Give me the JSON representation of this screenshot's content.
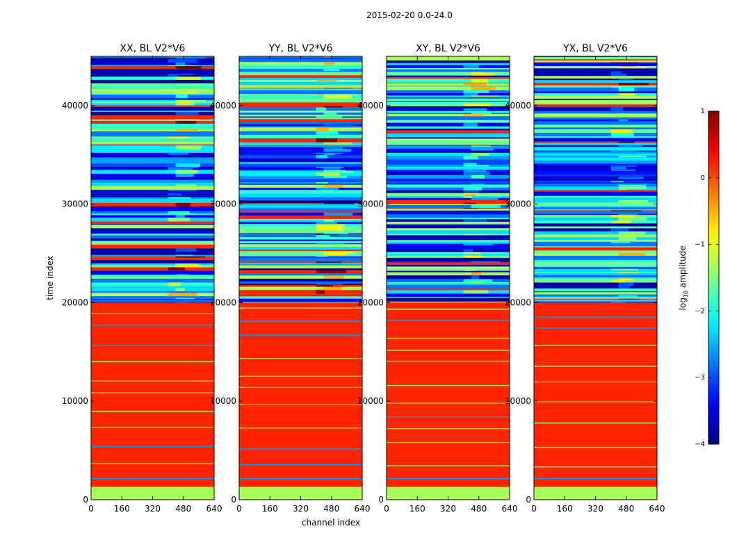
{
  "figure_title": "2015-02-20 0.0-24.0",
  "chart_data": {
    "type": "heatmap",
    "title": "2015-02-20 0.0-24.0",
    "xlabel": "channel index",
    "ylabel": "time index",
    "xlim": [
      0,
      640
    ],
    "ylim": [
      0,
      45000
    ],
    "x_ticks": [
      "0",
      "160",
      "320",
      "480",
      "640"
    ],
    "x_tick_values": [
      0,
      160,
      320,
      480,
      640
    ],
    "y_ticks": [
      "0",
      "10000",
      "20000",
      "30000",
      "40000"
    ],
    "y_tick_values": [
      0,
      10000,
      20000,
      30000,
      40000
    ],
    "panels": [
      {
        "title": "XX, BL V2*V6",
        "pol": "XX"
      },
      {
        "title": "YY, BL V2*V6",
        "pol": "YY"
      },
      {
        "title": "XY, BL V2*V6",
        "pol": "XY"
      },
      {
        "title": "YX, BL V2*V6",
        "pol": "YX"
      }
    ],
    "bands": [
      {
        "from": 0,
        "to": 1300,
        "log10_amplitude": -1.3,
        "kind": "uniform"
      },
      {
        "from": 1300,
        "to": 20000,
        "log10_amplitude": 0.2,
        "kind": "uniform"
      },
      {
        "from": 20000,
        "to": 32000,
        "log10_amplitude": -1.8,
        "kind": "mixed"
      },
      {
        "from": 32000,
        "to": 36000,
        "log10_amplitude": -3.0,
        "kind": "noise"
      },
      {
        "from": 36000,
        "to": 45000,
        "log10_amplitude": -2.5,
        "kind": "mixed"
      }
    ],
    "colorbar": {
      "label": "log",
      "label_sub": "10",
      "label_rest": " amplitude",
      "range": [
        -4,
        1
      ],
      "ticks": [
        "1",
        "0",
        "−1",
        "−2",
        "−3",
        "−4"
      ],
      "tick_values": [
        1,
        0,
        -1,
        -2,
        -3,
        -4
      ],
      "colormap": "jet"
    }
  }
}
